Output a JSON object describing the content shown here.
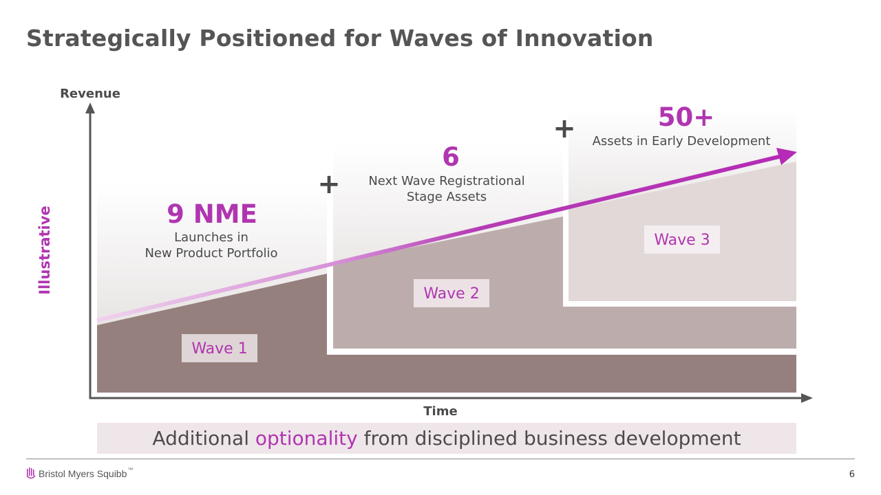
{
  "title": "Strategically Positioned for Waves of Innovation",
  "axes": {
    "y_label": "Revenue",
    "x_label": "Time",
    "side_label": "Illustrative"
  },
  "wave1": {
    "number": "9 NME",
    "line1": "Launches in",
    "line2": "New Product Portfolio",
    "tag": "Wave 1"
  },
  "wave2": {
    "number": "6",
    "line1": "Next Wave Registrational",
    "line2": "Stage Assets",
    "tag": "Wave 2"
  },
  "wave3": {
    "number": "50+",
    "line1": "Assets in Early Development",
    "tag": "Wave 3"
  },
  "plus_symbol": "+",
  "banner": {
    "prefix": "Additional ",
    "highlight": "optionality",
    "suffix": " from disciplined business development"
  },
  "footer": {
    "brand": "Bristol Myers Squibb",
    "trademark": "™",
    "page": "6"
  },
  "colors": {
    "accent": "#b035b0",
    "wave1": "#96807e",
    "wave2": "#bcadac",
    "wave3": "#e2d8d8",
    "banner_bg": "#efe6e9"
  }
}
